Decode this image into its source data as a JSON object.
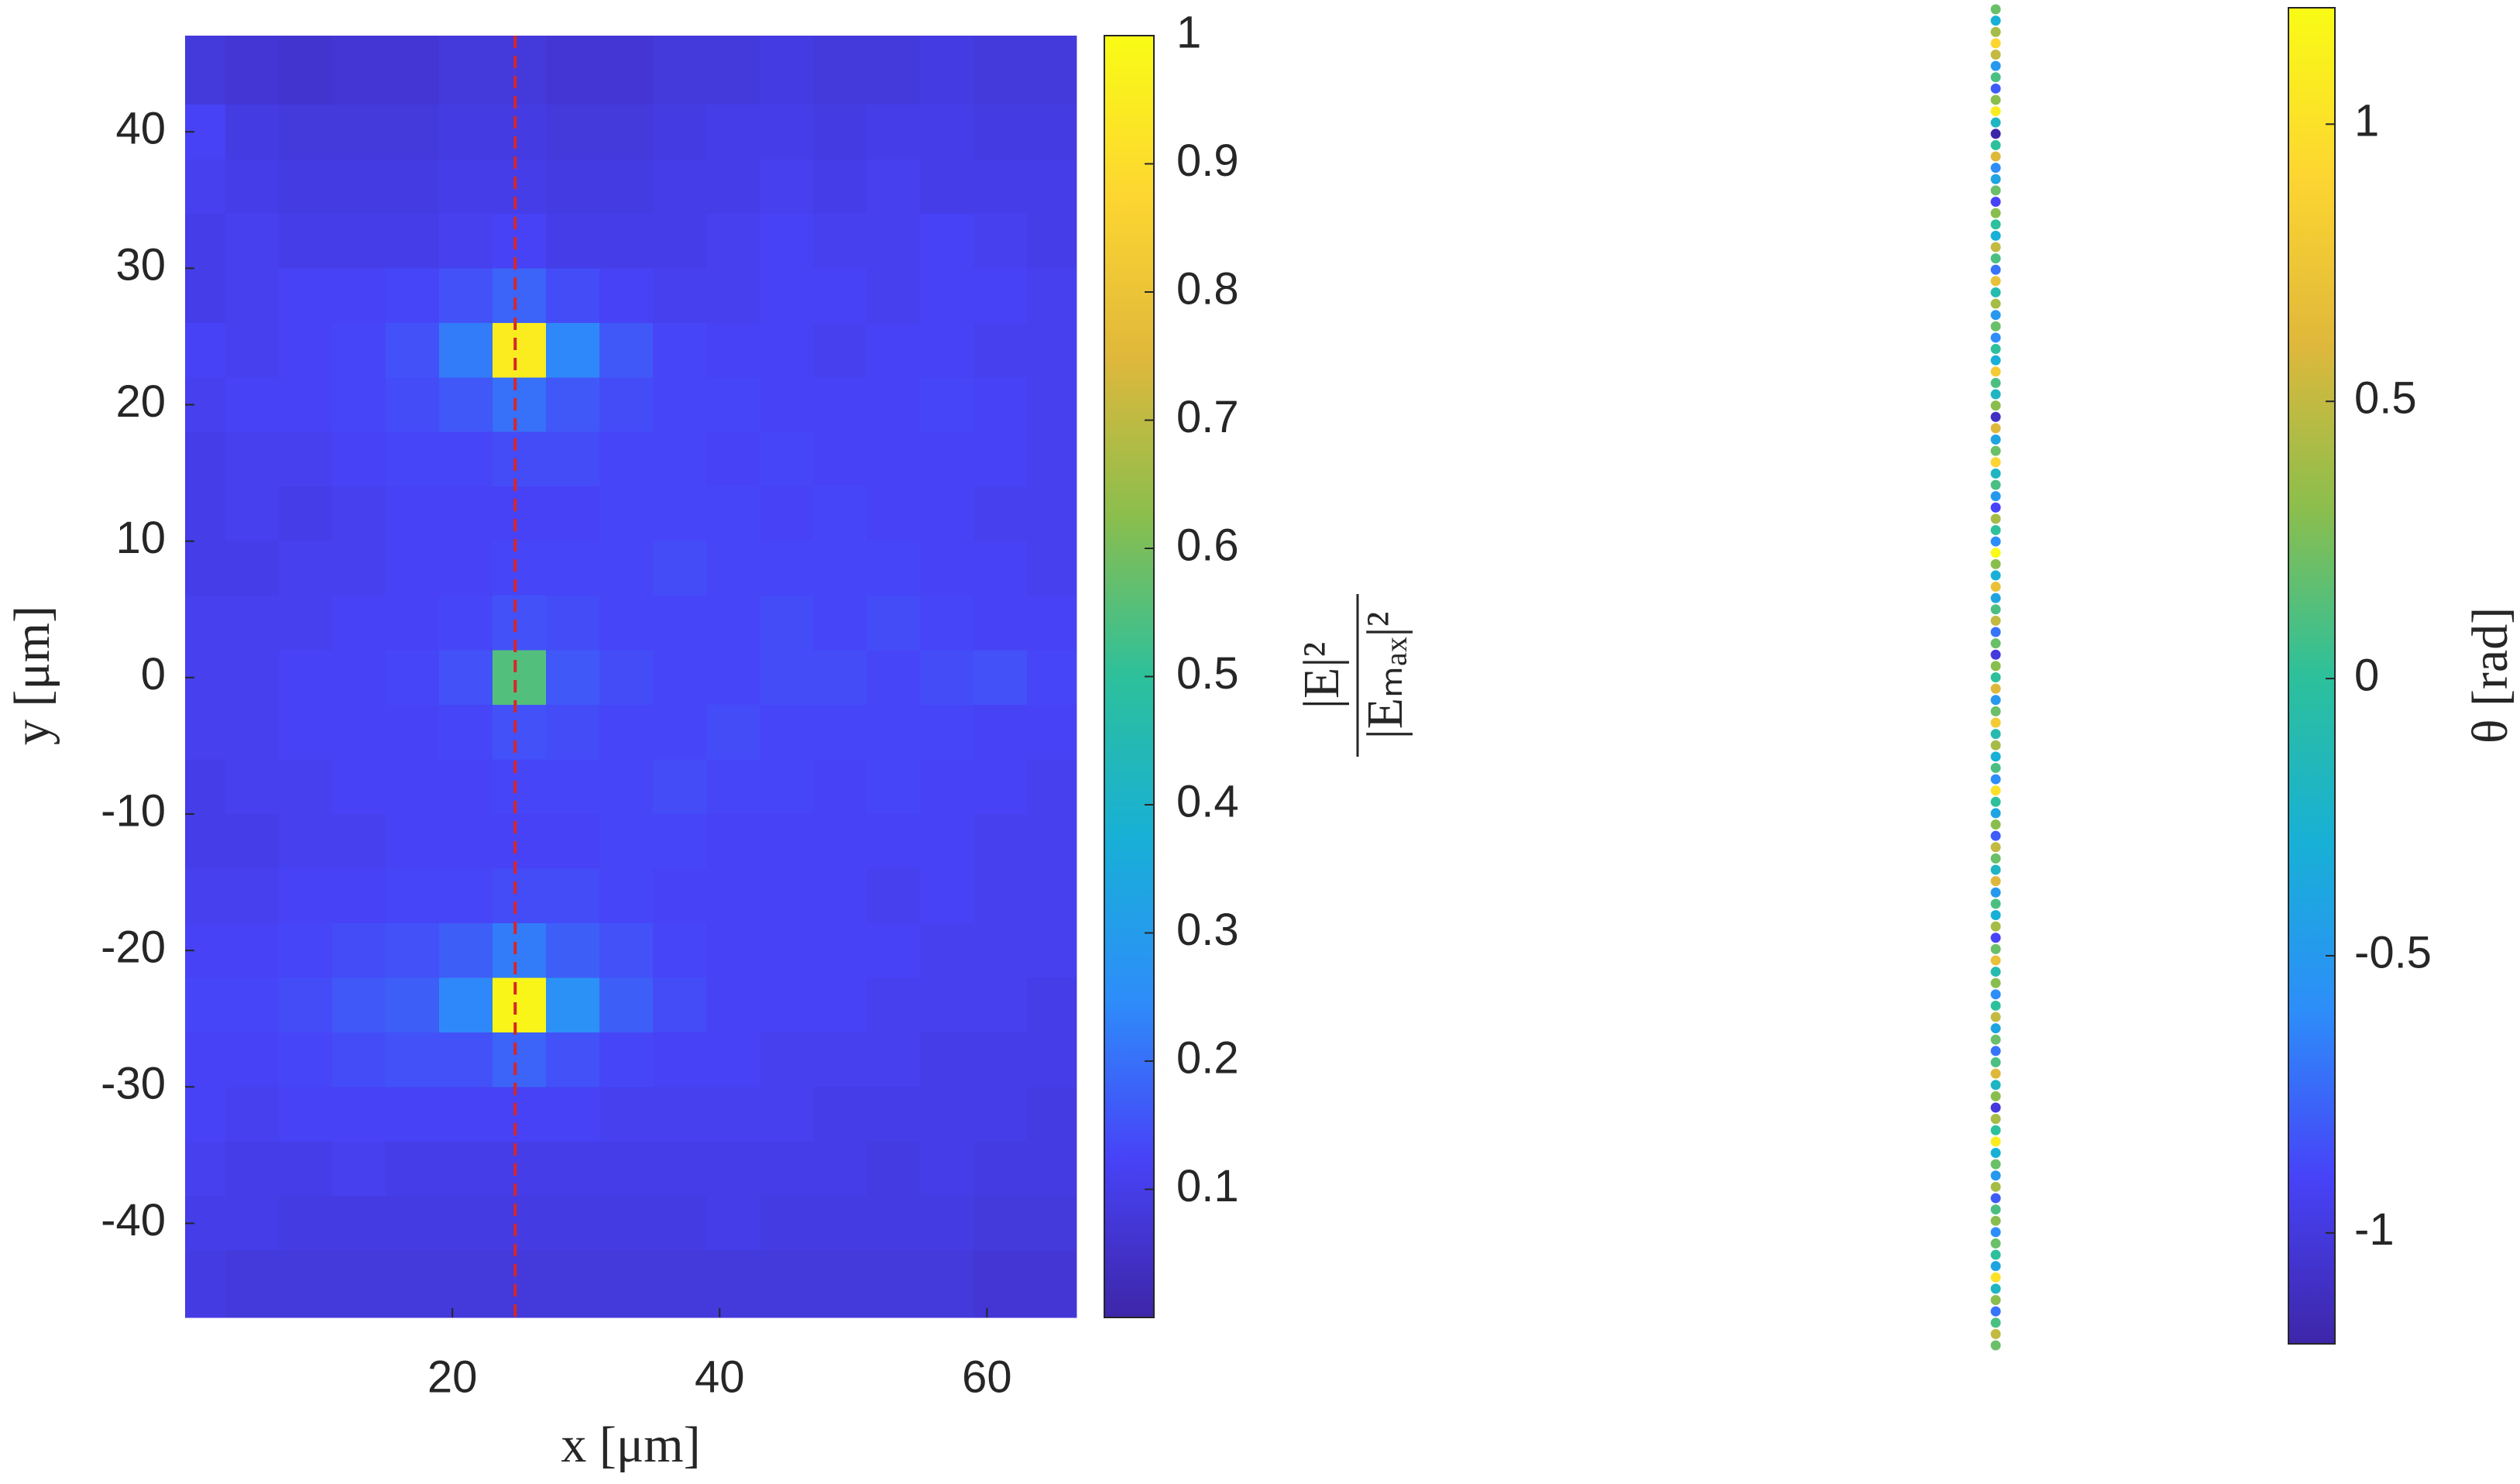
{
  "chart_data": [
    {
      "type": "heatmap",
      "xlabel": "x [μm]",
      "ylabel": "y [μm]",
      "colorbar_label": {
        "numerator": "|E|²",
        "denominator": "|Eₘₐₓ|²"
      },
      "xlim": [
        0,
        66.7
      ],
      "ylim": [
        -46.9,
        47.05
      ],
      "xticks": [
        20,
        40,
        60
      ],
      "yticks": [
        -40,
        -30,
        -20,
        -10,
        0,
        10,
        20,
        30,
        40
      ],
      "clim": [
        0,
        1
      ],
      "cticks": [
        0.1,
        0.2,
        0.3,
        0.4,
        0.5,
        0.6,
        0.7,
        0.8,
        0.9,
        1
      ],
      "colormap": [
        "#3e26a8",
        "#4743f8",
        "#2d8ef9",
        "#18b0d6",
        "#2dc09b",
        "#8bbe4d",
        "#e0b83b",
        "#fdd631",
        "#f9fb15"
      ],
      "vline": {
        "x": 24.7,
        "color": "#d62728"
      },
      "x": [
        1,
        5,
        9,
        13,
        17,
        21,
        25,
        29,
        33,
        37,
        41,
        45,
        49,
        53,
        57,
        61,
        65
      ],
      "y": [
        44,
        40,
        36,
        32,
        28,
        24,
        20,
        16,
        12,
        8,
        4,
        0,
        -4,
        -8,
        -12,
        -16,
        -20,
        -24,
        -28,
        -32,
        -36,
        -40,
        -44
      ],
      "z": [
        [
          0.08,
          0.07,
          0.06,
          0.07,
          0.07,
          0.08,
          0.08,
          0.07,
          0.07,
          0.08,
          0.08,
          0.09,
          0.08,
          0.08,
          0.09,
          0.08,
          0.08
        ],
        [
          0.12,
          0.09,
          0.08,
          0.08,
          0.08,
          0.09,
          0.09,
          0.08,
          0.08,
          0.09,
          0.1,
          0.1,
          0.09,
          0.1,
          0.1,
          0.09,
          0.09
        ],
        [
          0.11,
          0.1,
          0.09,
          0.09,
          0.09,
          0.1,
          0.1,
          0.09,
          0.09,
          0.1,
          0.1,
          0.11,
          0.1,
          0.11,
          0.1,
          0.1,
          0.1
        ],
        [
          0.1,
          0.11,
          0.1,
          0.1,
          0.1,
          0.11,
          0.12,
          0.1,
          0.1,
          0.1,
          0.11,
          0.12,
          0.11,
          0.11,
          0.12,
          0.11,
          0.1
        ],
        [
          0.1,
          0.11,
          0.12,
          0.12,
          0.13,
          0.15,
          0.18,
          0.14,
          0.12,
          0.11,
          0.11,
          0.12,
          0.12,
          0.11,
          0.12,
          0.12,
          0.11
        ],
        [
          0.12,
          0.11,
          0.12,
          0.13,
          0.15,
          0.22,
          0.95,
          0.24,
          0.16,
          0.13,
          0.12,
          0.12,
          0.11,
          0.12,
          0.12,
          0.11,
          0.11
        ],
        [
          0.11,
          0.12,
          0.12,
          0.13,
          0.14,
          0.16,
          0.2,
          0.16,
          0.14,
          0.13,
          0.13,
          0.12,
          0.12,
          0.12,
          0.13,
          0.12,
          0.11
        ],
        [
          0.1,
          0.11,
          0.11,
          0.12,
          0.13,
          0.13,
          0.14,
          0.14,
          0.13,
          0.13,
          0.12,
          0.13,
          0.12,
          0.12,
          0.12,
          0.12,
          0.11
        ],
        [
          0.1,
          0.11,
          0.1,
          0.11,
          0.12,
          0.12,
          0.12,
          0.12,
          0.13,
          0.13,
          0.13,
          0.12,
          0.13,
          0.12,
          0.12,
          0.11,
          0.11
        ],
        [
          0.1,
          0.1,
          0.11,
          0.11,
          0.12,
          0.12,
          0.13,
          0.13,
          0.13,
          0.14,
          0.13,
          0.13,
          0.13,
          0.13,
          0.12,
          0.12,
          0.11
        ],
        [
          0.11,
          0.11,
          0.11,
          0.12,
          0.12,
          0.13,
          0.15,
          0.14,
          0.13,
          0.13,
          0.13,
          0.14,
          0.13,
          0.14,
          0.13,
          0.12,
          0.12
        ],
        [
          0.11,
          0.11,
          0.12,
          0.12,
          0.13,
          0.15,
          0.55,
          0.16,
          0.14,
          0.13,
          0.13,
          0.14,
          0.14,
          0.13,
          0.14,
          0.15,
          0.13
        ],
        [
          0.11,
          0.11,
          0.12,
          0.12,
          0.12,
          0.13,
          0.15,
          0.14,
          0.13,
          0.13,
          0.14,
          0.13,
          0.13,
          0.13,
          0.13,
          0.12,
          0.12
        ],
        [
          0.1,
          0.11,
          0.11,
          0.12,
          0.12,
          0.12,
          0.13,
          0.13,
          0.13,
          0.14,
          0.13,
          0.13,
          0.12,
          0.13,
          0.12,
          0.12,
          0.11
        ],
        [
          0.1,
          0.1,
          0.11,
          0.11,
          0.12,
          0.12,
          0.12,
          0.12,
          0.13,
          0.13,
          0.12,
          0.12,
          0.12,
          0.12,
          0.12,
          0.11,
          0.11
        ],
        [
          0.11,
          0.11,
          0.12,
          0.12,
          0.13,
          0.13,
          0.14,
          0.14,
          0.13,
          0.12,
          0.12,
          0.12,
          0.12,
          0.11,
          0.12,
          0.11,
          0.11
        ],
        [
          0.12,
          0.12,
          0.13,
          0.14,
          0.15,
          0.17,
          0.22,
          0.17,
          0.15,
          0.13,
          0.12,
          0.12,
          0.12,
          0.12,
          0.11,
          0.11,
          0.11
        ],
        [
          0.13,
          0.13,
          0.14,
          0.16,
          0.17,
          0.24,
          0.98,
          0.26,
          0.17,
          0.14,
          0.12,
          0.12,
          0.12,
          0.11,
          0.11,
          0.11,
          0.1
        ],
        [
          0.12,
          0.12,
          0.13,
          0.14,
          0.15,
          0.15,
          0.18,
          0.15,
          0.13,
          0.12,
          0.12,
          0.11,
          0.11,
          0.11,
          0.1,
          0.1,
          0.1
        ],
        [
          0.12,
          0.11,
          0.12,
          0.12,
          0.12,
          0.12,
          0.12,
          0.12,
          0.11,
          0.11,
          0.11,
          0.11,
          0.1,
          0.1,
          0.1,
          0.1,
          0.09
        ],
        [
          0.11,
          0.1,
          0.1,
          0.11,
          0.1,
          0.1,
          0.1,
          0.1,
          0.1,
          0.1,
          0.1,
          0.1,
          0.1,
          0.09,
          0.1,
          0.09,
          0.09
        ],
        [
          0.1,
          0.1,
          0.09,
          0.09,
          0.09,
          0.09,
          0.09,
          0.09,
          0.09,
          0.09,
          0.1,
          0.09,
          0.09,
          0.09,
          0.09,
          0.08,
          0.08
        ],
        [
          0.09,
          0.08,
          0.08,
          0.08,
          0.08,
          0.08,
          0.08,
          0.08,
          0.08,
          0.08,
          0.08,
          0.08,
          0.08,
          0.08,
          0.08,
          0.07,
          0.07
        ]
      ]
    },
    {
      "type": "strip",
      "colorbar_label": "θ [rad]",
      "clim": [
        -1.2,
        1.21
      ],
      "cticks": [
        -1,
        -0.5,
        0,
        0.5,
        1
      ],
      "colormap": [
        "#3e26a8",
        "#4743f8",
        "#2d8ef9",
        "#18b0d6",
        "#2dc09b",
        "#8bbe4d",
        "#e0b83b",
        "#fdd631",
        "#f9fb15"
      ],
      "values": [
        0.2,
        -0.3,
        0.4,
        0.9,
        0.5,
        -0.5,
        0.1,
        -0.8,
        0.3,
        1.1,
        -0.2,
        -1.2,
        0.0,
        0.6,
        -0.6,
        -0.4,
        0.2,
        -0.9,
        0.3,
        0.0,
        -0.3,
        0.5,
        0.1,
        -0.7,
        0.7,
        -0.1,
        0.4,
        -0.5,
        0.2,
        -0.6,
        0.0,
        -0.3,
        0.8,
        0.1,
        -0.2,
        0.3,
        -1.1,
        0.6,
        -0.4,
        0.2,
        0.9,
        -0.2,
        0.1,
        -0.5,
        -0.9,
        0.4,
        0.0,
        -0.6,
        1.2,
        0.3,
        -0.3,
        0.7,
        -0.4,
        0.1,
        0.5,
        -0.7,
        0.2,
        -1.0,
        0.3,
        0.0,
        0.6,
        -0.5,
        0.2,
        0.8,
        -0.1,
        0.4,
        -0.3,
        0.1,
        -0.6,
        1.0,
        0.0,
        -0.4,
        0.3,
        -0.8,
        0.5,
        0.2,
        -0.2,
        0.6,
        -0.5,
        0.1,
        -0.3,
        0.4,
        -0.9,
        0.2,
        0.7,
        -0.1,
        0.3,
        -0.6,
        0.0,
        0.5,
        -0.4,
        0.2,
        -0.7,
        0.1,
        0.6,
        -0.2,
        0.3,
        -1.0,
        0.4,
        0.0,
        1.1,
        -0.3,
        0.2,
        -0.5,
        0.4,
        -0.8,
        0.1,
        0.3,
        -0.6,
        0.2,
        0.0,
        -0.4,
        1.0,
        -0.2,
        0.3,
        -0.7,
        0.1,
        0.5,
        0.2
      ]
    }
  ]
}
